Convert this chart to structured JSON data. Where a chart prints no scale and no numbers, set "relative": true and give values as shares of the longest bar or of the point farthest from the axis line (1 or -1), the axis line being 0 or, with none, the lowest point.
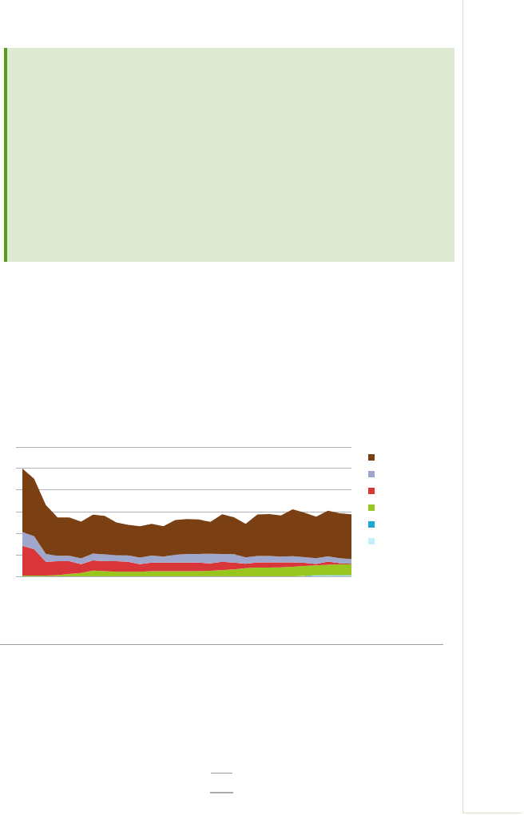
{
  "chart_data": {
    "type": "area",
    "relative": true,
    "stacked": true,
    "grid": "y",
    "legend": false,
    "categories": [
      null,
      null,
      null,
      null,
      null,
      null,
      null,
      null,
      null,
      null,
      null,
      null,
      null,
      null,
      null,
      null,
      null,
      null,
      null,
      null,
      null,
      null,
      null,
      null,
      null,
      null,
      null,
      null,
      null
    ],
    "series": [
      {
        "color": "#c4eef8",
        "values": [
          null,
          null,
          null,
          null,
          null,
          null,
          null,
          null,
          null,
          null,
          null,
          null,
          null,
          null,
          null,
          null,
          null,
          null,
          null,
          null,
          null,
          null,
          null,
          null,
          null,
          0.006,
          0.008,
          0.006,
          0.008
        ]
      },
      {
        "color": "#1ba9d0",
        "values": [
          null,
          null,
          null,
          null,
          null,
          null,
          null,
          null,
          null,
          null,
          null,
          null,
          null,
          null,
          null,
          null,
          null,
          null,
          null,
          null,
          null,
          null,
          null,
          null,
          0.004,
          0.006,
          0.004,
          0.006,
          0.004
        ]
      },
      {
        "color": "#98c61e",
        "values": [
          0.008,
          0.008,
          0.008,
          0.011,
          0.022,
          0.032,
          0.054,
          0.049,
          0.043,
          0.043,
          0.043,
          0.049,
          0.049,
          0.049,
          0.049,
          0.049,
          0.051,
          0.057,
          0.065,
          0.076,
          0.081,
          0.081,
          0.084,
          0.089,
          0.092,
          0.089,
          0.095,
          0.1,
          0.1
        ]
      },
      {
        "color": "#d9363a",
        "values": [
          0.276,
          0.243,
          0.127,
          0.13,
          0.119,
          0.081,
          0.095,
          0.092,
          0.097,
          0.092,
          0.07,
          0.078,
          0.078,
          0.078,
          0.078,
          0.078,
          0.07,
          0.078,
          0.062,
          0.041,
          0.049,
          0.049,
          0.046,
          0.041,
          0.03,
          0.014,
          0.03,
          0.011,
          0.005
        ]
      },
      {
        "color": "#9fa8cc",
        "values": [
          0.127,
          0.122,
          0.073,
          0.049,
          0.049,
          0.054,
          0.062,
          0.062,
          0.057,
          0.059,
          0.062,
          0.065,
          0.057,
          0.073,
          0.081,
          0.081,
          0.089,
          0.073,
          0.078,
          0.059,
          0.059,
          0.059,
          0.054,
          0.057,
          0.051,
          0.054,
          0.049,
          0.046,
          0.043
        ]
      },
      {
        "color": "#7b3f14",
        "values": [
          0.589,
          0.532,
          0.454,
          0.357,
          0.357,
          0.341,
          0.362,
          0.359,
          0.303,
          0.284,
          0.289,
          0.295,
          0.281,
          0.322,
          0.324,
          0.319,
          0.295,
          0.368,
          0.343,
          0.311,
          0.386,
          0.389,
          0.381,
          0.435,
          0.414,
          0.384,
          0.424,
          0.416,
          0.416
        ]
      }
    ]
  }
}
